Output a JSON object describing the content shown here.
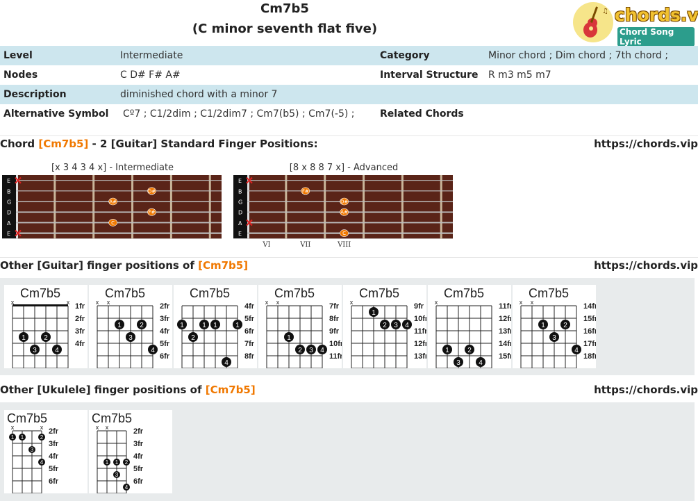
{
  "header": {
    "title": "Cm7b5",
    "subtitle": "(C minor seventh flat five)",
    "logo_main": "chords.vip",
    "logo_sub": "Chord Song Lyric"
  },
  "info": {
    "level_label": "Level",
    "level_value": "Intermediate",
    "category_label": "Category",
    "category_value": "Minor chord ; Dim chord ; 7th chord ;",
    "nodes_label": "Nodes",
    "nodes_value": "C D# F# A#",
    "interval_label": "Interval Structure",
    "interval_value": "R m3 m5 m7",
    "description_label": "Description",
    "description_value": "diminished chord with a minor 7",
    "alt_label": "Alternative Symbol",
    "alt_value": "Cº7 ; C1/2dim ; C1/2dim7 ; Cm7(b5) ; Cm7(-5) ;",
    "related_label": "Related Chords",
    "related_value": ""
  },
  "section1": {
    "pre": "Chord ",
    "chord": "[Cm7b5]",
    "post": " - 2 [Guitar] Standard Finger Positions:",
    "url": "https://chords.vip"
  },
  "fretboards": [
    {
      "caption": "[x 3 4 3 4 x] - Intermediate",
      "strings": [
        "E",
        "B",
        "G",
        "D",
        "A",
        "E"
      ],
      "muted": [
        0,
        5
      ],
      "dots": [
        {
          "string": 1,
          "fret": 4,
          "label": "D#"
        },
        {
          "string": 2,
          "fret": 3,
          "label": "A#"
        },
        {
          "string": 3,
          "fret": 4,
          "label": "F#"
        },
        {
          "string": 4,
          "fret": 3,
          "label": "C"
        }
      ],
      "fret_numbers": []
    },
    {
      "caption": "[8 x 8 8 7 x] - Advanced",
      "strings": [
        "E",
        "B",
        "G",
        "D",
        "A",
        "E"
      ],
      "muted": [
        0,
        4
      ],
      "dots": [
        {
          "string": 1,
          "fret": 2,
          "label": "F#"
        },
        {
          "string": 2,
          "fret": 3,
          "label": "D#"
        },
        {
          "string": 3,
          "fret": 3,
          "label": "A#"
        },
        {
          "string": 5,
          "fret": 3,
          "label": "C"
        }
      ],
      "fret_numbers": [
        {
          "fret": 1,
          "label": "VI"
        },
        {
          "fret": 2,
          "label": "VII"
        },
        {
          "fret": 3,
          "label": "VIII"
        }
      ]
    }
  ],
  "section2": {
    "pre": "Other [Guitar] finger positions of ",
    "chord": "[Cm7b5]",
    "url": "https://chords.vip"
  },
  "guitar_diagrams": [
    {
      "name": "Cm7b5",
      "frets": [
        "1fr",
        "2fr",
        "3fr",
        "4fr"
      ],
      "muted": [
        0,
        5
      ],
      "barre": {
        "fret": 0,
        "from": 0,
        "to": 5
      },
      "dots": [
        {
          "s": 1,
          "f": 3,
          "n": "1"
        },
        {
          "s": 2,
          "f": 4,
          "n": "3"
        },
        {
          "s": 3,
          "f": 3,
          "n": "2"
        },
        {
          "s": 4,
          "f": 4,
          "n": "4"
        }
      ]
    },
    {
      "name": "Cm7b5",
      "frets": [
        "2fr",
        "3fr",
        "4fr",
        "5fr",
        "6fr"
      ],
      "muted": [
        0,
        1
      ],
      "barre": null,
      "dots": [
        {
          "s": 2,
          "f": 2,
          "n": "1"
        },
        {
          "s": 3,
          "f": 3,
          "n": "3"
        },
        {
          "s": 4,
          "f": 2,
          "n": "2"
        },
        {
          "s": 5,
          "f": 4,
          "n": "4"
        }
      ]
    },
    {
      "name": "Cm7b5",
      "frets": [
        "4fr",
        "5fr",
        "6fr",
        "7fr",
        "8fr"
      ],
      "muted": [],
      "barre": null,
      "dots": [
        {
          "s": 0,
          "f": 2,
          "n": "1"
        },
        {
          "s": 1,
          "f": 3,
          "n": "2"
        },
        {
          "s": 2,
          "f": 2,
          "n": "1"
        },
        {
          "s": 3,
          "f": 2,
          "n": "1"
        },
        {
          "s": 4,
          "f": 5,
          "n": "4"
        },
        {
          "s": 5,
          "f": 2,
          "n": "1"
        }
      ]
    },
    {
      "name": "Cm7b5",
      "frets": [
        "7fr",
        "8fr",
        "9fr",
        "10fr",
        "11fr"
      ],
      "muted": [
        0,
        1
      ],
      "barre": null,
      "dots": [
        {
          "s": 2,
          "f": 3,
          "n": "1"
        },
        {
          "s": 3,
          "f": 4,
          "n": "2"
        },
        {
          "s": 4,
          "f": 4,
          "n": "3"
        },
        {
          "s": 5,
          "f": 4,
          "n": "4"
        }
      ]
    },
    {
      "name": "Cm7b5",
      "frets": [
        "9fr",
        "10fr",
        "11fr",
        "12fr",
        "13fr"
      ],
      "muted": [
        0
      ],
      "barre": null,
      "dots": [
        {
          "s": 2,
          "f": 1,
          "n": "1"
        },
        {
          "s": 3,
          "f": 2,
          "n": "2"
        },
        {
          "s": 4,
          "f": 2,
          "n": "3"
        },
        {
          "s": 5,
          "f": 2,
          "n": "4"
        }
      ]
    },
    {
      "name": "Cm7b5",
      "frets": [
        "11fr",
        "12fr",
        "13fr",
        "14fr",
        "15fr"
      ],
      "muted": [
        0
      ],
      "barre": null,
      "dots": [
        {
          "s": 1,
          "f": 4,
          "n": "1"
        },
        {
          "s": 2,
          "f": 5,
          "n": "3"
        },
        {
          "s": 3,
          "f": 4,
          "n": "2"
        },
        {
          "s": 4,
          "f": 5,
          "n": "4"
        }
      ]
    },
    {
      "name": "Cm7b5",
      "frets": [
        "14fr",
        "15fr",
        "16fr",
        "17fr",
        "18fr"
      ],
      "muted": [
        0,
        1
      ],
      "barre": null,
      "dots": [
        {
          "s": 2,
          "f": 2,
          "n": "1"
        },
        {
          "s": 3,
          "f": 3,
          "n": "3"
        },
        {
          "s": 4,
          "f": 2,
          "n": "2"
        },
        {
          "s": 5,
          "f": 4,
          "n": "4"
        }
      ]
    }
  ],
  "section3": {
    "pre": "Other [Ukulele] finger positions of ",
    "chord": "[Cm7b5]",
    "url": "https://chords.vip"
  },
  "ukulele_diagrams": [
    {
      "name": "Cm7b5",
      "frets": [
        "2fr",
        "3fr",
        "4fr",
        "5fr",
        "6fr"
      ],
      "muted": [
        0,
        3
      ],
      "dots": [
        {
          "s": 0,
          "f": 1,
          "n": "1"
        },
        {
          "s": 1,
          "f": 1,
          "n": "1"
        },
        {
          "s": 2,
          "f": 2,
          "n": "3"
        },
        {
          "s": 3,
          "f": 1,
          "n": "2"
        },
        {
          "s": 3,
          "f": 3,
          "n": "4"
        }
      ]
    },
    {
      "name": "Cm7b5",
      "frets": [
        "2fr",
        "3fr",
        "4fr",
        "5fr",
        "6fr"
      ],
      "muted": [
        0,
        1
      ],
      "dots": [
        {
          "s": 1,
          "f": 3,
          "n": "1"
        },
        {
          "s": 2,
          "f": 3,
          "n": "1"
        },
        {
          "s": 2,
          "f": 4,
          "n": "3"
        },
        {
          "s": 3,
          "f": 3,
          "n": "2"
        },
        {
          "s": 3,
          "f": 5,
          "n": "4"
        }
      ]
    }
  ],
  "colors": {
    "accent": "#f07800",
    "table_blue": "#cde6ee",
    "fretboard": "#5a2418",
    "dot": "#f07800"
  }
}
